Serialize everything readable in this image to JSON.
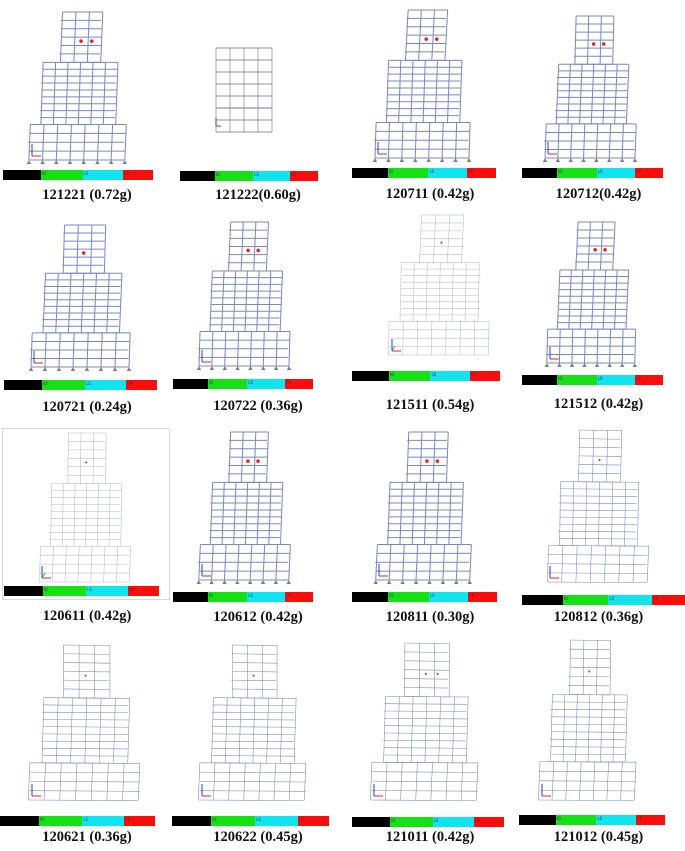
{
  "colors": {
    "frame": "#7a88c0",
    "frame_faint": "#b4bad8",
    "support": "#7f7f7f",
    "hinge": "#e8202a",
    "axis_x": "#e8202a",
    "axis_y": "#2a3cd8",
    "axis_z": "#1fc21f",
    "bar_black": "#000000",
    "bar_green": "#16e016",
    "bar_cyan": "#10e4ee",
    "bar_red": "#fb0d0d"
  },
  "colorbar_ticks": [
    "IO",
    "LS",
    "CP"
  ],
  "panels": [
    {
      "caption": "121221 (0.72g)",
      "style": "bold",
      "hinges": [
        [
          5,
          18
        ],
        [
          7,
          18
        ]
      ]
    },
    {
      "caption": "121222(0.60g)",
      "style": "flat"
    },
    {
      "caption": "120711 (0.42g)",
      "style": "bold",
      "hinges": [
        [
          5,
          18
        ],
        [
          7,
          18
        ]
      ]
    },
    {
      "caption": "120712(0.42g)",
      "style": "bold",
      "hinges": [
        [
          5,
          18
        ],
        [
          7,
          18
        ]
      ]
    },
    {
      "caption": "120721 (0.24g)",
      "style": "bold",
      "hinges": [
        [
          5,
          18
        ]
      ]
    },
    {
      "caption": "120722 (0.36g)",
      "style": "bold",
      "hinges": [
        [
          5,
          18
        ],
        [
          7,
          18
        ]
      ]
    },
    {
      "caption": "121511 (0.54g)",
      "style": "faint",
      "hinges": [
        [
          5,
          18
        ]
      ]
    },
    {
      "caption": "121512 (0.42g)",
      "style": "bold",
      "hinges": [
        [
          5,
          18
        ],
        [
          7,
          18
        ]
      ]
    },
    {
      "caption": "120611 (0.42g)",
      "style": "faint",
      "hinges": [
        [
          5,
          18
        ]
      ]
    },
    {
      "caption": "120612 (0.42g)",
      "style": "bold",
      "hinges": [
        [
          5,
          18
        ],
        [
          7,
          18
        ]
      ]
    },
    {
      "caption": "120811 (0.30g)",
      "style": "bold",
      "hinges": [
        [
          5,
          18
        ],
        [
          7,
          18
        ]
      ]
    },
    {
      "caption": "120812 (0.36g)",
      "style": "wide",
      "hinges": [
        [
          5,
          18
        ]
      ]
    },
    {
      "caption": "120621 (0.36g)",
      "style": "wide",
      "hinges": [
        [
          5,
          18
        ]
      ]
    },
    {
      "caption": "120622 (0.45g)",
      "style": "wide",
      "hinges": [
        [
          5,
          18
        ]
      ]
    },
    {
      "caption": "121011 (0.42g)",
      "style": "wide",
      "hinges": [
        [
          5,
          18
        ],
        [
          7,
          18
        ]
      ]
    },
    {
      "caption": "121012 (0.45g)",
      "style": "wide",
      "hinges": [
        [
          5,
          20
        ]
      ]
    }
  ]
}
